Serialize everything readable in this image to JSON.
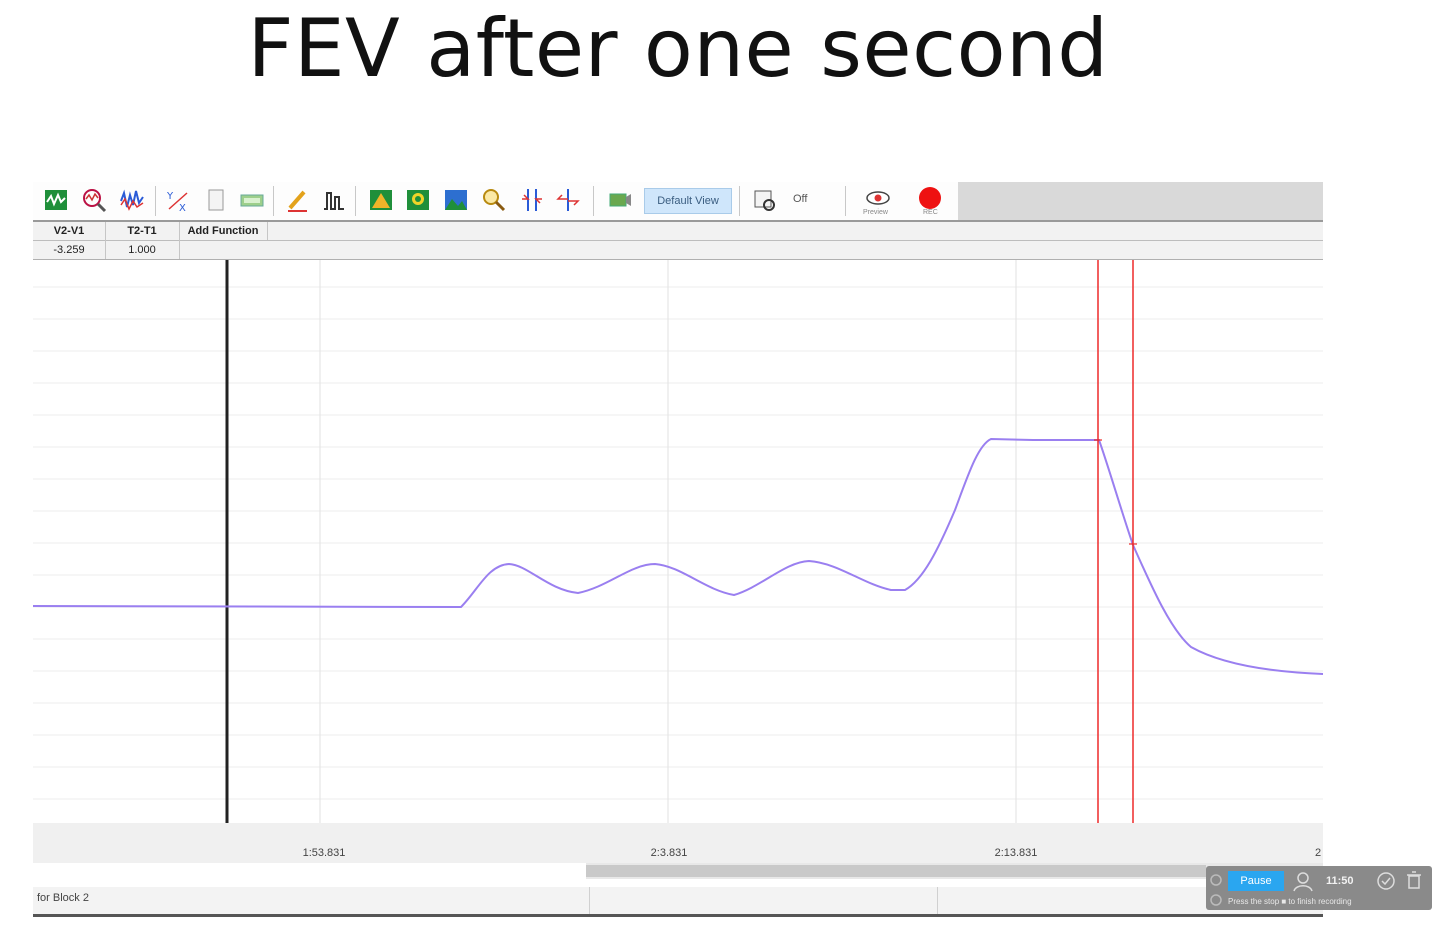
{
  "slide": {
    "title": "FEV after one second"
  },
  "toolbar": {
    "default_view_label": "Default View",
    "off_label": "Off",
    "preview_label": "Preview",
    "rec_label": "REC",
    "icons": [
      "chart-icon",
      "zoom-analysis-icon",
      "waveform-icon",
      "xy-plot-icon",
      "page-icon",
      "meter-icon",
      "pencil-icon",
      "marker-icon",
      "mountain-icon",
      "image-zoom-icon",
      "landscape-icon",
      "magnifier-icon",
      "compress-icon",
      "expand-icon",
      "camera-icon",
      "settings-icon",
      "preview-eye-icon",
      "record-icon"
    ],
    "colors": {
      "record": "#ee1111",
      "default_view_bg": "#cfe6fb"
    }
  },
  "function_row": {
    "headers": [
      "V2-V1",
      "T2-T1",
      "Add Function"
    ],
    "values": [
      "-3.259",
      "1.000"
    ]
  },
  "plot": {
    "time_labels": [
      "1:53.831",
      "2:3.831",
      "2:13.831",
      "2"
    ],
    "trace_color": "#9a7ff0",
    "cursor_color": "#ee2a2a",
    "marker_line_color": "#222222"
  },
  "status_bar": {
    "text": "for Block 2"
  },
  "recording_overlay": {
    "pause_label": "Pause",
    "timer": "11:50",
    "hint": "Press the stop ■ to finish recording"
  }
}
